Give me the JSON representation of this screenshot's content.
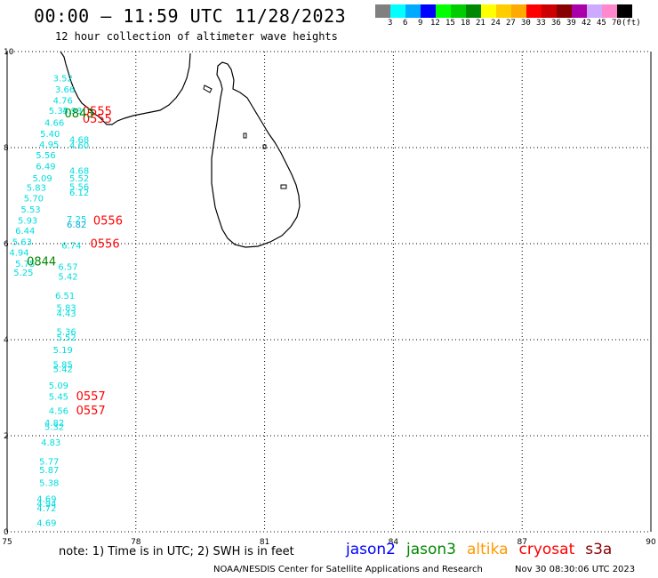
{
  "header": {
    "title": "00:00 – 11:59 UTC 11/28/2023",
    "subtitle": "12 hour collection of altimeter wave heights"
  },
  "legend": {
    "colors": [
      "#808080",
      "#00ffff",
      "#00aaff",
      "#0000ff",
      "#00ff00",
      "#00cc00",
      "#008800",
      "#ffff00",
      "#ffcc00",
      "#ffaa00",
      "#ff0000",
      "#cc0000",
      "#880000",
      "#aa00aa",
      "#ccaaff",
      "#ff88cc",
      "#000000"
    ],
    "labels": [
      "3",
      "6",
      "9",
      "12",
      "15",
      "18",
      "21",
      "24",
      "27",
      "30",
      "33",
      "36",
      "39",
      "42",
      "45",
      "70",
      "(ft)"
    ]
  },
  "axes": {
    "x_ticks": [
      "75",
      "78",
      "81",
      "84",
      "87",
      "90"
    ],
    "y_ticks": [
      "0",
      "2",
      "4",
      "6",
      "8",
      "10"
    ]
  },
  "chart_data": {
    "type": "scatter",
    "x_range": [
      75,
      90
    ],
    "y_range": [
      0,
      10
    ],
    "grid": true,
    "wave_heights": [
      {
        "lon": 76.3,
        "lat": 9.38,
        "label": "3.52",
        "color": "#00dddd"
      },
      {
        "lon": 76.35,
        "lat": 9.15,
        "label": "3.66",
        "color": "#00dddd"
      },
      {
        "lon": 76.3,
        "lat": 8.92,
        "label": "4.76",
        "color": "#00dddd"
      },
      {
        "lon": 76.2,
        "lat": 8.7,
        "label": "5.35",
        "color": "#00dddd"
      },
      {
        "lon": 76.52,
        "lat": 8.7,
        "label": "4.93",
        "color": "#00dddd"
      },
      {
        "lon": 76.1,
        "lat": 8.45,
        "label": "4.66",
        "color": "#00dddd"
      },
      {
        "lon": 76.0,
        "lat": 8.22,
        "label": "5.40",
        "color": "#00dddd"
      },
      {
        "lon": 75.98,
        "lat": 8.0,
        "label": "4.95",
        "color": "#00dddd"
      },
      {
        "lon": 76.68,
        "lat": 8.1,
        "label": "4.68",
        "color": "#00dddd"
      },
      {
        "lon": 76.68,
        "lat": 7.98,
        "label": "4.60",
        "color": "#00dddd"
      },
      {
        "lon": 75.9,
        "lat": 7.78,
        "label": "5.56",
        "color": "#00dddd"
      },
      {
        "lon": 75.9,
        "lat": 7.55,
        "label": "6.49",
        "color": "#00dddd"
      },
      {
        "lon": 75.82,
        "lat": 7.3,
        "label": "5.09",
        "color": "#00dddd"
      },
      {
        "lon": 76.68,
        "lat": 7.45,
        "label": "4.68",
        "color": "#00dddd"
      },
      {
        "lon": 76.68,
        "lat": 7.3,
        "label": "5.52",
        "color": "#00dddd"
      },
      {
        "lon": 75.68,
        "lat": 7.1,
        "label": "5.83",
        "color": "#00dddd"
      },
      {
        "lon": 76.68,
        "lat": 7.12,
        "label": "5.56",
        "color": "#00dddd"
      },
      {
        "lon": 76.68,
        "lat": 7.0,
        "label": "6.12",
        "color": "#00dddd"
      },
      {
        "lon": 75.62,
        "lat": 6.88,
        "label": "5.70",
        "color": "#00dddd"
      },
      {
        "lon": 75.55,
        "lat": 6.65,
        "label": "5.53",
        "color": "#00dddd"
      },
      {
        "lon": 75.48,
        "lat": 6.42,
        "label": "5.93",
        "color": "#00dddd"
      },
      {
        "lon": 76.62,
        "lat": 6.44,
        "label": "7.25",
        "color": "#00dddd"
      },
      {
        "lon": 76.62,
        "lat": 6.33,
        "label": "6.82",
        "color": "#00aadd"
      },
      {
        "lon": 75.42,
        "lat": 6.2,
        "label": "6.44",
        "color": "#00dddd"
      },
      {
        "lon": 75.35,
        "lat": 5.97,
        "label": "5.63",
        "color": "#00dddd"
      },
      {
        "lon": 76.5,
        "lat": 5.9,
        "label": "6.74",
        "color": "#00dddd"
      },
      {
        "lon": 75.28,
        "lat": 5.75,
        "label": "4.94",
        "color": "#00dddd"
      },
      {
        "lon": 75.42,
        "lat": 5.52,
        "label": "5.75",
        "color": "#00dddd"
      },
      {
        "lon": 76.42,
        "lat": 5.45,
        "label": "6.57",
        "color": "#00dddd"
      },
      {
        "lon": 75.38,
        "lat": 5.33,
        "label": "5.25",
        "color": "#00dddd"
      },
      {
        "lon": 76.42,
        "lat": 5.25,
        "label": "5.42",
        "color": "#00dddd"
      },
      {
        "lon": 76.35,
        "lat": 4.85,
        "label": "6.51",
        "color": "#00dddd"
      },
      {
        "lon": 76.38,
        "lat": 4.6,
        "label": "5.83",
        "color": "#00dddd"
      },
      {
        "lon": 76.38,
        "lat": 4.48,
        "label": "4.43",
        "color": "#00dddd"
      },
      {
        "lon": 76.38,
        "lat": 4.1,
        "label": "5.36",
        "color": "#00dddd"
      },
      {
        "lon": 76.38,
        "lat": 3.98,
        "label": "5.52",
        "color": "#00dddd"
      },
      {
        "lon": 76.3,
        "lat": 3.72,
        "label": "5.19",
        "color": "#00dddd"
      },
      {
        "lon": 76.3,
        "lat": 3.42,
        "label": "5.85",
        "color": "#00dddd"
      },
      {
        "lon": 76.3,
        "lat": 3.32,
        "label": "5.42",
        "color": "#00dddd"
      },
      {
        "lon": 76.2,
        "lat": 2.98,
        "label": "5.09",
        "color": "#00dddd"
      },
      {
        "lon": 76.2,
        "lat": 2.75,
        "label": "5.45",
        "color": "#00dddd"
      },
      {
        "lon": 76.2,
        "lat": 2.45,
        "label": "4.56",
        "color": "#00dddd"
      },
      {
        "lon": 76.1,
        "lat": 2.2,
        "label": "4.82",
        "color": "#00dddd"
      },
      {
        "lon": 76.1,
        "lat": 2.12,
        "label": "5.32",
        "color": "#00dddd"
      },
      {
        "lon": 76.02,
        "lat": 1.8,
        "label": "4.83",
        "color": "#00dddd"
      },
      {
        "lon": 75.98,
        "lat": 1.4,
        "label": "5.77",
        "color": "#00dddd"
      },
      {
        "lon": 75.98,
        "lat": 1.22,
        "label": "5.87",
        "color": "#00dddd"
      },
      {
        "lon": 75.98,
        "lat": 0.95,
        "label": "5.38",
        "color": "#00dddd"
      },
      {
        "lon": 75.92,
        "lat": 0.62,
        "label": "4.69",
        "color": "#00dddd"
      },
      {
        "lon": 75.92,
        "lat": 0.52,
        "label": "4.94",
        "color": "#00dddd"
      },
      {
        "lon": 75.92,
        "lat": 0.43,
        "label": "4.72",
        "color": "#00dddd"
      },
      {
        "lon": 75.92,
        "lat": 0.12,
        "label": "4.69",
        "color": "#00dddd"
      }
    ],
    "pass_times": [
      {
        "lon": 77.1,
        "lat": 8.68,
        "label": "0555",
        "color": "#ff0000"
      },
      {
        "lon": 77.1,
        "lat": 8.52,
        "label": "0555",
        "color": "#ff0000"
      },
      {
        "lon": 76.68,
        "lat": 8.63,
        "label": "0843",
        "color": "#008800"
      },
      {
        "lon": 77.35,
        "lat": 6.4,
        "label": "0556",
        "color": "#ff0000"
      },
      {
        "lon": 77.28,
        "lat": 5.92,
        "label": "0556",
        "color": "#ff0000"
      },
      {
        "lon": 75.8,
        "lat": 5.55,
        "label": "0844",
        "color": "#008800"
      },
      {
        "lon": 76.95,
        "lat": 2.74,
        "label": "0557",
        "color": "#ff0000"
      },
      {
        "lon": 76.95,
        "lat": 2.44,
        "label": "0557",
        "color": "#ff0000"
      }
    ]
  },
  "footer": {
    "note": "note: 1) Time is in UTC; 2) SWH is in feet",
    "missions": [
      {
        "name": "jason2",
        "color": "#0000ff"
      },
      {
        "name": "jason3",
        "color": "#008800"
      },
      {
        "name": "altika",
        "color": "#ff9900"
      },
      {
        "name": "cryosat",
        "color": "#ff0000"
      },
      {
        "name": "s3a",
        "color": "#880000"
      }
    ],
    "credit": "NOAA/NESDIS Center for Satellite Applications and Research",
    "timestamp": "Nov 30 08:30:06 UTC 2023"
  }
}
